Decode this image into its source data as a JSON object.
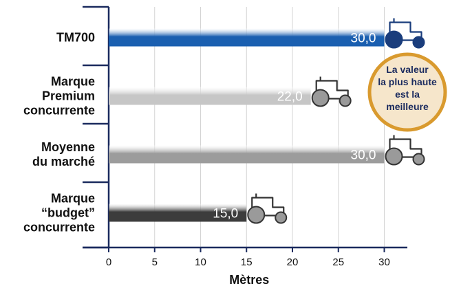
{
  "chart_data": {
    "type": "bar",
    "orientation": "horizontal",
    "categories": [
      [
        "TM700"
      ],
      [
        "Marque",
        "Premium",
        "concurrente"
      ],
      [
        "Moyenne",
        "du marché"
      ],
      [
        "Marque",
        "“budget”",
        "concurrente"
      ]
    ],
    "values": [
      30,
      22,
      30,
      15
    ],
    "value_labels": [
      "30,0",
      "22,0",
      "30,0",
      "15,0"
    ],
    "xlabel": "Mètres",
    "xlim": [
      0,
      30
    ],
    "x_ticks": [
      "0",
      "5",
      "10",
      "15",
      "20",
      "25",
      "30"
    ],
    "grid": "vertical",
    "bar_colors": [
      "#1a5fb0",
      "#c6c6c6",
      "#9c9c9c",
      "#3c3c3c"
    ],
    "icon": "tractor-icon",
    "annotation": [
      "La valeur",
      "la plus haute",
      "est la",
      "meilleure"
    ]
  },
  "colors": {
    "axis": "#1a2a5e",
    "tractor_highlight": "#1a3d7c",
    "badge_fill": "#f6e6cb",
    "badge_border": "#d99a2e"
  }
}
